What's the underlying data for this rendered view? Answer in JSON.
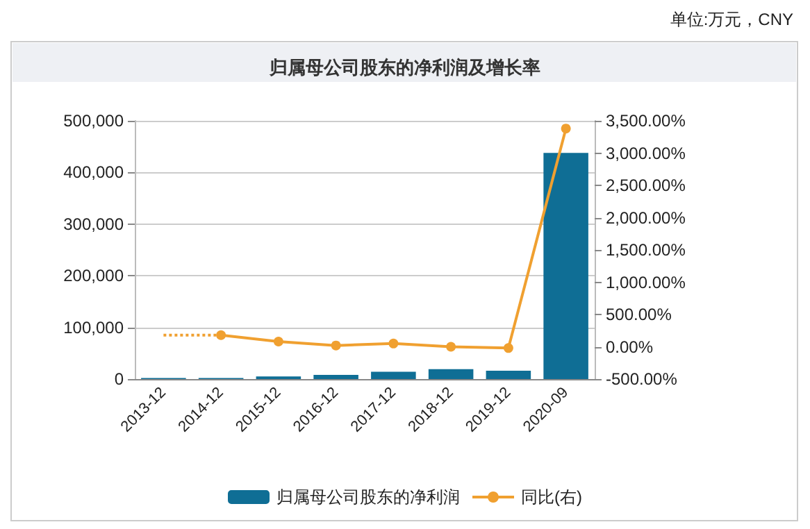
{
  "chart_data": {
    "type": "bar",
    "title": "归属母公司股东的净利润及增长率",
    "annotations": [
      "单位:万元，CNY"
    ],
    "categories": [
      "2013-12",
      "2014-12",
      "2015-12",
      "2016-12",
      "2017-12",
      "2018-12",
      "2019-12",
      "2020-09"
    ],
    "series": [
      {
        "name": "归属母公司股东的净利润",
        "color": "#0f6e95",
        "values": [
          2000,
          2000,
          5000,
          8000,
          14000,
          19000,
          16000,
          438000
        ]
      },
      {
        "name": "同比(右)",
        "type": "line",
        "axis": "y2",
        "color": "#f0a030",
        "marker": "circle",
        "line_style": "solid",
        "values": [
          null,
          180,
          80,
          20,
          50,
          0,
          -20,
          3380
        ]
      },
      {
        "type": "line",
        "axis": "y2",
        "color": "#f0a030",
        "marker": "none",
        "line_style": "dotted",
        "values": [
          180,
          180,
          null,
          null,
          null,
          null,
          null,
          null
        ]
      }
    ],
    "ylim": [
      0,
      500000
    ],
    "yticks": [
      {
        "value": 0,
        "label": "0"
      },
      {
        "value": 100000,
        "label": "100,000"
      },
      {
        "value": 200000,
        "label": "200,000"
      },
      {
        "value": 300000,
        "label": "300,000"
      },
      {
        "value": 400000,
        "label": "400,000"
      },
      {
        "value": 500000,
        "label": "500,000"
      }
    ],
    "y2lim": [
      -500,
      3500
    ],
    "y2ticks": [
      {
        "value": -500,
        "label": "-500.00%"
      },
      {
        "value": 0,
        "label": "0.00%"
      },
      {
        "value": 500,
        "label": "500.00%"
      },
      {
        "value": 1000,
        "label": "1,000.00%"
      },
      {
        "value": 1500,
        "label": "1,500.00%"
      },
      {
        "value": 2000,
        "label": "2,000.00%"
      },
      {
        "value": 2500,
        "label": "2,500.00%"
      },
      {
        "value": 3000,
        "label": "3,000.00%"
      },
      {
        "value": 3500,
        "label": "3,500.00%"
      }
    ],
    "grid": "y",
    "legend": "bottom"
  }
}
